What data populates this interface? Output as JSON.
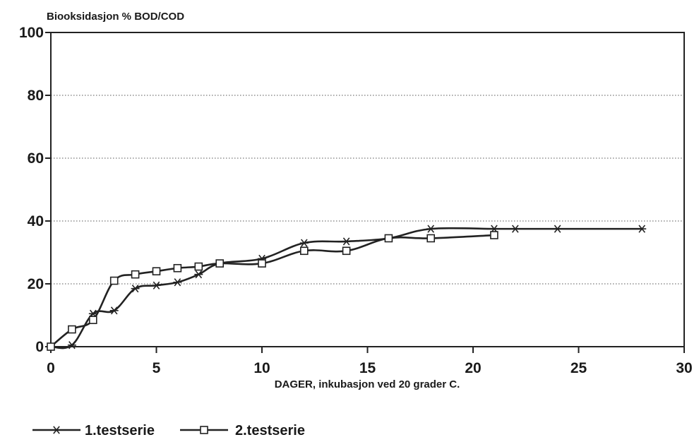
{
  "chart_data": {
    "type": "line",
    "title": "Biooksidasjon  % BOD/COD",
    "xlabel": "DAGER, inkubasjon ved 20 grader C.",
    "ylabel": "",
    "xlim": [
      0,
      30
    ],
    "ylim": [
      0,
      100
    ],
    "x_ticks": [
      "0",
      "5",
      "10",
      "15",
      "20",
      "25",
      "30"
    ],
    "y_ticks": [
      "0",
      "20",
      "40",
      "60",
      "80",
      "100"
    ],
    "grid": "horizontal dotted",
    "legend_position": "bottom",
    "series": [
      {
        "name": "1.testserie",
        "marker": "asterisk",
        "points": [
          [
            0,
            0
          ],
          [
            1,
            0.5
          ],
          [
            2,
            10.5
          ],
          [
            3,
            11.5
          ],
          [
            4,
            18.5
          ],
          [
            5,
            19.5
          ],
          [
            6,
            20.5
          ],
          [
            7,
            23
          ],
          [
            8,
            26.5
          ],
          [
            10,
            28
          ],
          [
            12,
            33
          ],
          [
            14,
            33.5
          ],
          [
            16,
            34.5
          ],
          [
            18,
            37.5
          ],
          [
            21,
            37.5
          ],
          [
            22,
            37.5
          ],
          [
            24,
            37.5
          ],
          [
            28,
            37.5
          ]
        ]
      },
      {
        "name": "2.testserie",
        "marker": "square",
        "points": [
          [
            0,
            0
          ],
          [
            1,
            5.5
          ],
          [
            2,
            8.5
          ],
          [
            3,
            21
          ],
          [
            4,
            23
          ],
          [
            5,
            24
          ],
          [
            6,
            25
          ],
          [
            7,
            25.5
          ],
          [
            8,
            26.5
          ],
          [
            10,
            26.5
          ],
          [
            12,
            30.5
          ],
          [
            14,
            30.5
          ],
          [
            16,
            34.5
          ],
          [
            18,
            34.5
          ],
          [
            21,
            35.5
          ]
        ]
      }
    ]
  }
}
